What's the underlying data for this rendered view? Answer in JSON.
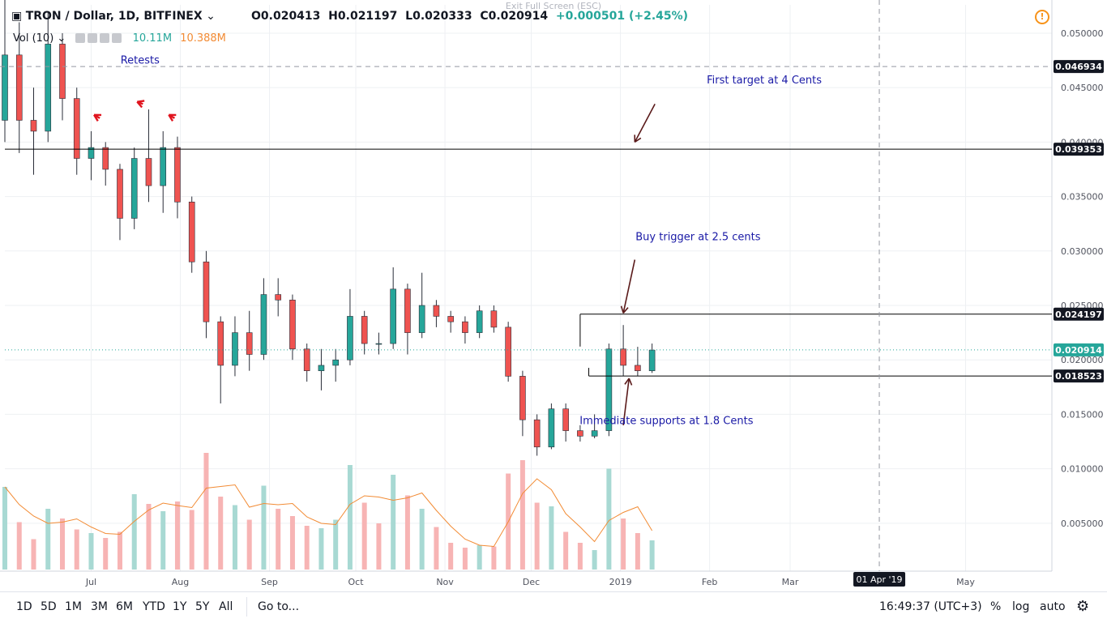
{
  "header": {
    "symbol_title": "TRON / Dollar, 1D, BITFINEX",
    "open": "O0.020413",
    "high": "H0.021197",
    "low": "L0.020333",
    "close": "C0.020914",
    "change": "+0.000501 (+2.45%)",
    "volume_label": "Vol (10)",
    "volume_value": "10.11M",
    "volume_ma": "10.388M",
    "exit_fullscreen": "Exit Full Screen (ESC)"
  },
  "bottom_bar": {
    "ranges": [
      "1D",
      "5D",
      "1M",
      "3M",
      "6M",
      "YTD",
      "1Y",
      "5Y",
      "All"
    ],
    "goto": "Go to...",
    "clock": "16:49:37 (UTC+3)",
    "percent": "%",
    "log": "log",
    "auto": "auto"
  },
  "colors": {
    "up": "#26a69a",
    "down": "#ef5350",
    "vol_up": "#a8d9d3",
    "vol_down": "#f7b4b4",
    "volume_ma": "#f28b34",
    "annotation": "#1a1aa6",
    "arrow": "#5a1a1a",
    "label_bg": "#131722",
    "last_price_bg": "#26a69a"
  },
  "chart_data": {
    "type": "candlestick",
    "symbol": "TRON / Dollar, 1D, BITFINEX",
    "y_range": [
      0.0006,
      0.0526
    ],
    "x_range": [
      "2018-06-01",
      "2019-05-31"
    ],
    "y_ticks": [
      "0.050000",
      "0.045000",
      "0.040000",
      "0.035000",
      "0.030000",
      "0.025000",
      "0.020000",
      "0.015000",
      "0.010000",
      "0.005000"
    ],
    "x_ticks": [
      {
        "label": "Jul",
        "date": "2018-07-01"
      },
      {
        "label": "Aug",
        "date": "2018-08-01"
      },
      {
        "label": "Sep",
        "date": "2018-09-01"
      },
      {
        "label": "Oct",
        "date": "2018-10-01"
      },
      {
        "label": "Nov",
        "date": "2018-11-01"
      },
      {
        "label": "Dec",
        "date": "2018-12-01"
      },
      {
        "label": "2019",
        "date": "2019-01-01"
      },
      {
        "label": "Feb",
        "date": "2019-02-01"
      },
      {
        "label": "Mar",
        "date": "2019-03-01"
      },
      {
        "label": "May",
        "date": "2019-05-01"
      }
    ],
    "cursor": {
      "date_label": "01 Apr '19",
      "date": "2019-04-01",
      "price_label": "0.046934",
      "price": 0.046934
    },
    "last_price": {
      "label": "0.020914",
      "value": 0.020914
    },
    "levels": [
      {
        "label": "0.039353",
        "value": 0.039353,
        "from": "2018-06-01",
        "to": "2019-05-31"
      },
      {
        "label": "0.024197",
        "value": 0.024197,
        "from": "2018-12-18",
        "to": "2019-05-31"
      },
      {
        "label": "0.018523",
        "value": 0.018523,
        "from": "2018-12-21",
        "to": "2019-05-31"
      }
    ],
    "annotations": [
      {
        "text": "Retests",
        "date": "2018-07-18",
        "price": 0.0472
      },
      {
        "text": "First target at 4 Cents",
        "date": "2019-02-20",
        "price": 0.0454
      },
      {
        "text": "Buy trigger at 2.5 cents",
        "date": "2019-01-28",
        "price": 0.031
      },
      {
        "text": "Immediate supports at 1.8 Cents",
        "date": "2019-01-17",
        "price": 0.0141
      }
    ],
    "arrows": [
      {
        "from": [
          "2019-01-13",
          0.0435
        ],
        "to": [
          "2019-01-06",
          0.04
        ],
        "color": "#5a1a1a"
      },
      {
        "from": [
          "2019-01-06",
          0.0292
        ],
        "to": [
          "2019-01-02",
          0.0243
        ],
        "color": "#5a1a1a"
      },
      {
        "from": [
          "2019-01-02",
          0.014
        ],
        "to": [
          "2019-01-04",
          0.0183
        ],
        "color": "#5a1a1a"
      },
      {
        "from": [
          "2018-07-04",
          0.0422
        ],
        "to": [
          "2018-07-02",
          0.0425
        ],
        "color": "#e0141e"
      },
      {
        "from": [
          "2018-07-19",
          0.0435
        ],
        "to": [
          "2018-07-17",
          0.0437
        ],
        "color": "#e0141e"
      },
      {
        "from": [
          "2018-07-30",
          0.0422
        ],
        "to": [
          "2018-07-28",
          0.0425
        ],
        "color": "#e0141e"
      }
    ],
    "series": [
      {
        "name": "TRON / Dollar",
        "kind": "ohlc",
        "points": [
          {
            "date": "2018-06-01",
            "o": 0.042,
            "h": 0.055,
            "l": 0.04,
            "c": 0.048
          },
          {
            "date": "2018-06-06",
            "o": 0.048,
            "h": 0.051,
            "l": 0.039,
            "c": 0.042
          },
          {
            "date": "2018-06-11",
            "o": 0.042,
            "h": 0.045,
            "l": 0.037,
            "c": 0.041
          },
          {
            "date": "2018-06-16",
            "o": 0.041,
            "h": 0.052,
            "l": 0.04,
            "c": 0.049
          },
          {
            "date": "2018-06-21",
            "o": 0.049,
            "h": 0.05,
            "l": 0.042,
            "c": 0.044
          },
          {
            "date": "2018-06-26",
            "o": 0.044,
            "h": 0.045,
            "l": 0.037,
            "c": 0.0385
          },
          {
            "date": "2018-07-01",
            "o": 0.0385,
            "h": 0.041,
            "l": 0.0365,
            "c": 0.0395
          },
          {
            "date": "2018-07-06",
            "o": 0.0395,
            "h": 0.04,
            "l": 0.036,
            "c": 0.0375
          },
          {
            "date": "2018-07-11",
            "o": 0.0375,
            "h": 0.038,
            "l": 0.031,
            "c": 0.033
          },
          {
            "date": "2018-07-16",
            "o": 0.033,
            "h": 0.0395,
            "l": 0.032,
            "c": 0.0385
          },
          {
            "date": "2018-07-21",
            "o": 0.0385,
            "h": 0.043,
            "l": 0.0345,
            "c": 0.036
          },
          {
            "date": "2018-07-26",
            "o": 0.036,
            "h": 0.041,
            "l": 0.0335,
            "c": 0.0395
          },
          {
            "date": "2018-07-31",
            "o": 0.0395,
            "h": 0.0405,
            "l": 0.033,
            "c": 0.0345
          },
          {
            "date": "2018-08-05",
            "o": 0.0345,
            "h": 0.035,
            "l": 0.028,
            "c": 0.029
          },
          {
            "date": "2018-08-10",
            "o": 0.029,
            "h": 0.03,
            "l": 0.022,
            "c": 0.0235
          },
          {
            "date": "2018-08-15",
            "o": 0.0235,
            "h": 0.024,
            "l": 0.016,
            "c": 0.0195
          },
          {
            "date": "2018-08-20",
            "o": 0.0195,
            "h": 0.024,
            "l": 0.0185,
            "c": 0.0225
          },
          {
            "date": "2018-08-25",
            "o": 0.0225,
            "h": 0.0245,
            "l": 0.019,
            "c": 0.0205
          },
          {
            "date": "2018-08-30",
            "o": 0.0205,
            "h": 0.0275,
            "l": 0.02,
            "c": 0.026
          },
          {
            "date": "2018-09-04",
            "o": 0.026,
            "h": 0.0275,
            "l": 0.024,
            "c": 0.0255
          },
          {
            "date": "2018-09-09",
            "o": 0.0255,
            "h": 0.026,
            "l": 0.02,
            "c": 0.021
          },
          {
            "date": "2018-09-14",
            "o": 0.021,
            "h": 0.0215,
            "l": 0.018,
            "c": 0.019
          },
          {
            "date": "2018-09-19",
            "o": 0.019,
            "h": 0.021,
            "l": 0.0172,
            "c": 0.0195
          },
          {
            "date": "2018-09-24",
            "o": 0.0195,
            "h": 0.021,
            "l": 0.018,
            "c": 0.02
          },
          {
            "date": "2018-09-29",
            "o": 0.02,
            "h": 0.0265,
            "l": 0.0195,
            "c": 0.024
          },
          {
            "date": "2018-10-04",
            "o": 0.024,
            "h": 0.0245,
            "l": 0.0205,
            "c": 0.0215
          },
          {
            "date": "2018-10-09",
            "o": 0.0215,
            "h": 0.0225,
            "l": 0.0205,
            "c": 0.0215
          },
          {
            "date": "2018-10-14",
            "o": 0.0215,
            "h": 0.0285,
            "l": 0.021,
            "c": 0.0265
          },
          {
            "date": "2018-10-19",
            "o": 0.0265,
            "h": 0.027,
            "l": 0.0205,
            "c": 0.0225
          },
          {
            "date": "2018-10-24",
            "o": 0.0225,
            "h": 0.028,
            "l": 0.022,
            "c": 0.025
          },
          {
            "date": "2018-10-29",
            "o": 0.025,
            "h": 0.0255,
            "l": 0.023,
            "c": 0.024
          },
          {
            "date": "2018-11-03",
            "o": 0.024,
            "h": 0.0245,
            "l": 0.0225,
            "c": 0.0235
          },
          {
            "date": "2018-11-08",
            "o": 0.0235,
            "h": 0.024,
            "l": 0.0215,
            "c": 0.0225
          },
          {
            "date": "2018-11-13",
            "o": 0.0225,
            "h": 0.025,
            "l": 0.022,
            "c": 0.0245
          },
          {
            "date": "2018-11-18",
            "o": 0.0245,
            "h": 0.025,
            "l": 0.0225,
            "c": 0.023
          },
          {
            "date": "2018-11-23",
            "o": 0.023,
            "h": 0.0235,
            "l": 0.018,
            "c": 0.0185
          },
          {
            "date": "2018-11-28",
            "o": 0.0185,
            "h": 0.019,
            "l": 0.013,
            "c": 0.0145
          },
          {
            "date": "2018-12-03",
            "o": 0.0145,
            "h": 0.015,
            "l": 0.0112,
            "c": 0.012
          },
          {
            "date": "2018-12-08",
            "o": 0.012,
            "h": 0.016,
            "l": 0.0118,
            "c": 0.0155
          },
          {
            "date": "2018-12-13",
            "o": 0.0155,
            "h": 0.016,
            "l": 0.0125,
            "c": 0.0135
          },
          {
            "date": "2018-12-18",
            "o": 0.0135,
            "h": 0.014,
            "l": 0.0125,
            "c": 0.013
          },
          {
            "date": "2018-12-23",
            "o": 0.013,
            "h": 0.015,
            "l": 0.0128,
            "c": 0.0135
          },
          {
            "date": "2018-12-28",
            "o": 0.0135,
            "h": 0.0215,
            "l": 0.013,
            "c": 0.021
          },
          {
            "date": "2019-01-02",
            "o": 0.021,
            "h": 0.0232,
            "l": 0.0185,
            "c": 0.0195
          },
          {
            "date": "2019-01-07",
            "o": 0.0195,
            "h": 0.0212,
            "l": 0.0185,
            "c": 0.019
          },
          {
            "date": "2019-01-12",
            "o": 0.019,
            "h": 0.0215,
            "l": 0.0188,
            "c": 0.0209
          }
        ]
      },
      {
        "name": "Vol (10)",
        "kind": "volume",
        "points": [
          {
            "date": "2018-06-01",
            "v": 6.8,
            "up": true
          },
          {
            "date": "2018-06-06",
            "v": 3.9,
            "up": false
          },
          {
            "date": "2018-06-11",
            "v": 2.5,
            "up": false
          },
          {
            "date": "2018-06-16",
            "v": 5.0,
            "up": true
          },
          {
            "date": "2018-06-21",
            "v": 4.2,
            "up": false
          },
          {
            "date": "2018-06-26",
            "v": 3.3,
            "up": false
          },
          {
            "date": "2018-07-01",
            "v": 3.0,
            "up": true
          },
          {
            "date": "2018-07-06",
            "v": 2.6,
            "up": false
          },
          {
            "date": "2018-07-11",
            "v": 3.1,
            "up": false
          },
          {
            "date": "2018-07-16",
            "v": 6.2,
            "up": true
          },
          {
            "date": "2018-07-21",
            "v": 5.4,
            "up": false
          },
          {
            "date": "2018-07-26",
            "v": 4.8,
            "up": true
          },
          {
            "date": "2018-07-31",
            "v": 5.6,
            "up": false
          },
          {
            "date": "2018-08-05",
            "v": 4.9,
            "up": false
          },
          {
            "date": "2018-08-10",
            "v": 9.6,
            "up": false
          },
          {
            "date": "2018-08-15",
            "v": 6.0,
            "up": false
          },
          {
            "date": "2018-08-20",
            "v": 5.3,
            "up": true
          },
          {
            "date": "2018-08-25",
            "v": 4.1,
            "up": false
          },
          {
            "date": "2018-08-30",
            "v": 6.9,
            "up": true
          },
          {
            "date": "2018-09-04",
            "v": 5.0,
            "up": false
          },
          {
            "date": "2018-09-09",
            "v": 4.4,
            "up": false
          },
          {
            "date": "2018-09-14",
            "v": 3.6,
            "up": false
          },
          {
            "date": "2018-09-19",
            "v": 3.4,
            "up": true
          },
          {
            "date": "2018-09-24",
            "v": 4.1,
            "up": true
          },
          {
            "date": "2018-09-29",
            "v": 8.6,
            "up": true
          },
          {
            "date": "2018-10-04",
            "v": 5.5,
            "up": false
          },
          {
            "date": "2018-10-09",
            "v": 3.8,
            "up": false
          },
          {
            "date": "2018-10-14",
            "v": 7.8,
            "up": true
          },
          {
            "date": "2018-10-19",
            "v": 6.1,
            "up": false
          },
          {
            "date": "2018-10-24",
            "v": 5.0,
            "up": true
          },
          {
            "date": "2018-10-29",
            "v": 3.5,
            "up": false
          },
          {
            "date": "2018-11-03",
            "v": 2.2,
            "up": false
          },
          {
            "date": "2018-11-08",
            "v": 1.8,
            "up": false
          },
          {
            "date": "2018-11-13",
            "v": 2.0,
            "up": true
          },
          {
            "date": "2018-11-18",
            "v": 1.9,
            "up": false
          },
          {
            "date": "2018-11-23",
            "v": 7.9,
            "up": false
          },
          {
            "date": "2018-11-28",
            "v": 9.0,
            "up": false
          },
          {
            "date": "2018-12-03",
            "v": 5.5,
            "up": false
          },
          {
            "date": "2018-12-08",
            "v": 5.2,
            "up": true
          },
          {
            "date": "2018-12-13",
            "v": 3.1,
            "up": false
          },
          {
            "date": "2018-12-18",
            "v": 2.2,
            "up": false
          },
          {
            "date": "2018-12-23",
            "v": 1.6,
            "up": true
          },
          {
            "date": "2018-12-28",
            "v": 8.3,
            "up": true
          },
          {
            "date": "2019-01-02",
            "v": 4.2,
            "up": false
          },
          {
            "date": "2019-01-07",
            "v": 3.0,
            "up": false
          },
          {
            "date": "2019-01-12",
            "v": 2.4,
            "up": true
          }
        ]
      }
    ]
  }
}
